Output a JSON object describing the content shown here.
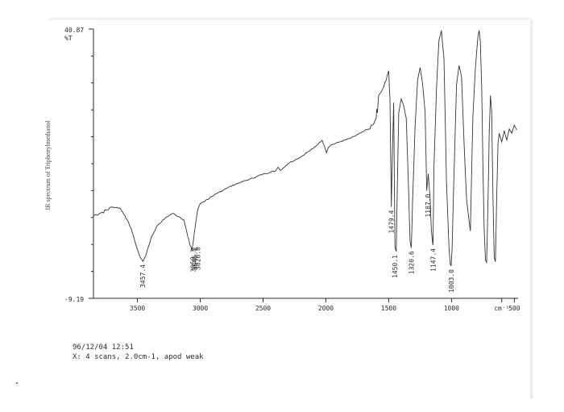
{
  "side_label": "IR spectrum of Triphenylmethanol",
  "footer": {
    "datetime": "96/12/04 12:51",
    "scan_info": "X: 4 scans, 2.0cm-1, apod weak"
  },
  "chart_data": {
    "type": "line",
    "title": "",
    "ylabel": "%T",
    "xlabel": "cm⁻¹",
    "y_top_label": "40.87",
    "y_bottom_label": "-9.19",
    "ylim": [
      -9.19,
      40.87
    ],
    "xlim": [
      3850,
      470
    ],
    "x_axis_reversed": true,
    "x_tick_labels": [
      "3500",
      "3000",
      "2500",
      "2000",
      "1500",
      "1000",
      "cm⁻¹",
      "500"
    ],
    "x_tick_values": [
      3500,
      3000,
      2500,
      2000,
      1500,
      1000,
      600,
      500
    ],
    "grid": false,
    "series": [
      {
        "x": [
          3850,
          3780,
          3700,
          3640,
          3600,
          3550,
          3510,
          3480,
          3457,
          3430,
          3390,
          3340,
          3280,
          3220,
          3170,
          3130,
          3100,
          3080,
          3068,
          3058,
          3048,
          3035,
          3020,
          3000,
          2900,
          2800,
          2700,
          2600,
          2500,
          2400,
          2380,
          2360,
          2300,
          2200,
          2100,
          2030,
          2010,
          1995,
          1980,
          1960,
          1900,
          1800,
          1700,
          1660,
          1620,
          1600,
          1595,
          1590,
          1580,
          1560,
          1540,
          1520,
          1500,
          1490,
          1480,
          1479,
          1470,
          1460,
          1450,
          1440,
          1430,
          1420,
          1400,
          1380,
          1360,
          1340,
          1330,
          1320,
          1310,
          1290,
          1270,
          1250,
          1230,
          1210,
          1197,
          1185,
          1170,
          1160,
          1150,
          1147,
          1140,
          1120,
          1100,
          1080,
          1060,
          1040,
          1020,
          1010,
          1003,
          995,
          985,
          960,
          940,
          920,
          900,
          880,
          850,
          830,
          810,
          790,
          780,
          770,
          760,
          750,
          740,
          730,
          720,
          710,
          700,
          690,
          680,
          670,
          660,
          650,
          640,
          630,
          620,
          600,
          580,
          560,
          540,
          520,
          500,
          480
        ],
        "values": [
          6.2,
          6.8,
          7.8,
          7.6,
          6.2,
          3.8,
          0.6,
          -1.5,
          -2.3,
          -1.0,
          2.1,
          4.4,
          5.7,
          6.6,
          6.0,
          5.4,
          2.4,
          0.6,
          -0.1,
          0.9,
          2.8,
          5.0,
          7.3,
          8.4,
          9.8,
          11.2,
          12.2,
          13.0,
          13.9,
          14.5,
          15.2,
          14.6,
          15.9,
          17.1,
          18.7,
          20.2,
          19.0,
          17.9,
          18.9,
          19.3,
          19.8,
          20.6,
          21.8,
          22.3,
          23.2,
          24.2,
          26.0,
          25.3,
          28.5,
          29.2,
          30.1,
          31.4,
          33.1,
          27.8,
          10.5,
          7.8,
          18.4,
          27.2,
          0.3,
          -0.5,
          12.8,
          25.3,
          27.9,
          26.6,
          24.3,
          9.6,
          1.5,
          0.2,
          8.7,
          22.5,
          31.4,
          33.7,
          30.7,
          25.4,
          10.8,
          14.0,
          9.2,
          3.5,
          1.0,
          0.7,
          14.6,
          29.6,
          38.8,
          40.6,
          35.5,
          12.5,
          0.4,
          -2.8,
          -3.2,
          0.0,
          9.6,
          30.5,
          34.1,
          32.0,
          19.6,
          9.2,
          3.3,
          24.5,
          33.6,
          39.4,
          40.6,
          38.5,
          30.3,
          16.1,
          3.8,
          -2.0,
          -2.5,
          8.2,
          20.9,
          28.5,
          25.5,
          9.8,
          -1.6,
          -2.4,
          9.8,
          19.6,
          21.5,
          19.9,
          22.0,
          20.2,
          22.3,
          21.5,
          23.0,
          22.1
        ]
      }
    ],
    "peak_labels": [
      {
        "label": "3457.4",
        "x": 3457.4,
        "y": -2.3
      },
      {
        "label": "3058.3",
        "x": 3058.3,
        "y": 0.6
      },
      {
        "label": "3046.2",
        "x": 3046.2,
        "y": 0.9
      },
      {
        "label": "3020.0",
        "x": 3020.0,
        "y": 1.0
      },
      {
        "label": "1479.4",
        "x": 1479.4,
        "y": 7.8
      },
      {
        "label": "1450.1",
        "x": 1450.1,
        "y": -0.5
      },
      {
        "label": "1320.6",
        "x": 1320.6,
        "y": 0.2
      },
      {
        "label": "1187.0",
        "x": 1187.0,
        "y": 10.8
      },
      {
        "label": "1147.4",
        "x": 1147.4,
        "y": 0.7
      },
      {
        "label": "1003.0",
        "x": 1003.0,
        "y": -3.2
      }
    ]
  }
}
